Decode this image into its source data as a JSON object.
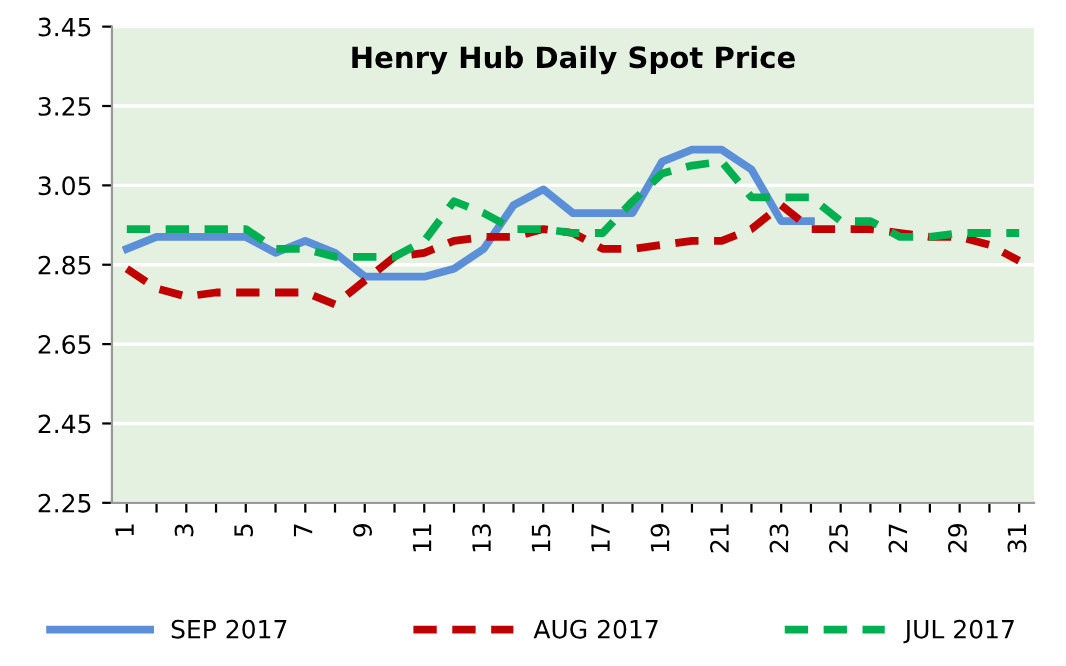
{
  "chart_data": {
    "type": "line",
    "title": "Henry Hub Daily Spot Price",
    "categories": [
      "1",
      null,
      "3",
      null,
      "5",
      null,
      "7",
      null,
      "9",
      null,
      "11",
      null,
      "13",
      null,
      "15",
      null,
      "17",
      null,
      "19",
      null,
      "21",
      null,
      "23",
      null,
      "25",
      null,
      "27",
      null,
      "29",
      null,
      "31"
    ],
    "series": [
      {
        "name": "SEP 2017",
        "color": "#5b8fd8",
        "line_style": "solid",
        "values": [
          2.89,
          2.92,
          2.92,
          2.92,
          2.92,
          2.88,
          2.91,
          2.88,
          2.82,
          2.82,
          2.82,
          2.84,
          2.89,
          3.0,
          3.04,
          2.98,
          2.98,
          2.98,
          3.11,
          3.14,
          3.14,
          3.09,
          2.96,
          2.96,
          null,
          null,
          null,
          null,
          null,
          null,
          null
        ]
      },
      {
        "name": "AUG 2017",
        "color": "#c00000",
        "line_style": "dashed",
        "values": [
          2.84,
          2.79,
          2.77,
          2.78,
          2.78,
          2.78,
          2.78,
          2.75,
          2.81,
          2.87,
          2.88,
          2.91,
          2.92,
          2.92,
          2.94,
          2.93,
          2.89,
          2.89,
          2.9,
          2.91,
          2.91,
          2.94,
          3.0,
          2.94,
          2.94,
          2.94,
          2.93,
          2.92,
          2.92,
          2.9,
          2.86
        ]
      },
      {
        "name": "JUL 2017",
        "color": "#00b050",
        "line_style": "dashed",
        "values": [
          2.94,
          2.94,
          2.94,
          2.94,
          2.94,
          2.89,
          2.89,
          2.87,
          2.87,
          2.87,
          2.91,
          3.01,
          2.98,
          2.94,
          2.94,
          2.93,
          2.93,
          3.01,
          3.08,
          3.1,
          3.11,
          3.02,
          3.02,
          3.02,
          2.96,
          2.96,
          2.92,
          2.92,
          2.93,
          2.93,
          2.93
        ]
      }
    ],
    "ylim": [
      2.25,
      3.45
    ],
    "yticks": [
      2.25,
      2.45,
      2.65,
      2.85,
      3.05,
      3.25,
      3.45
    ],
    "grid": "y",
    "legend": "bottom"
  }
}
